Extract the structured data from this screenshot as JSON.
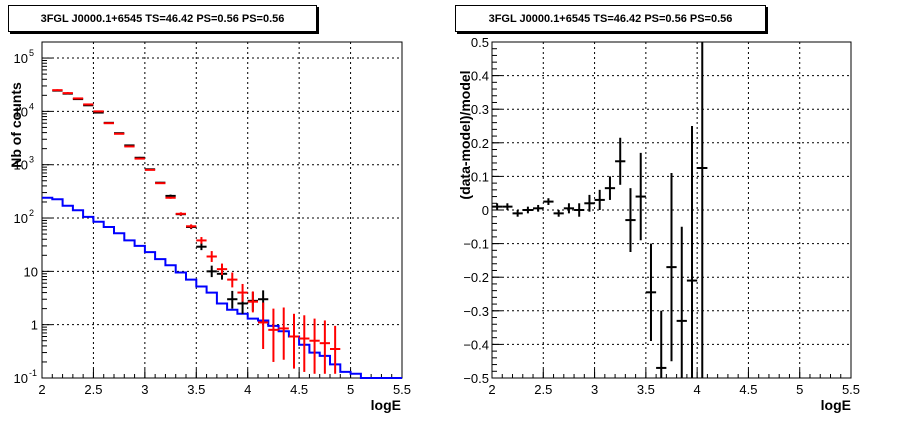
{
  "chart_data": [
    {
      "type": "line",
      "title": "3FGL J0000.1+6545 TS=46.42 PS=0.56 PS=0.56",
      "xlabel": "logE",
      "ylabel": "Nb of counts",
      "xlim": [
        2,
        5.5
      ],
      "ylim": [
        0.1,
        200000
      ],
      "yscale": "log",
      "grid": true,
      "x_ticks": [
        "2",
        "2.5",
        "3",
        "3.5",
        "4",
        "4.5",
        "5",
        "5.5"
      ],
      "y_ticks": [
        "10^-1",
        "1",
        "10",
        "10^2",
        "10^3",
        "10^4",
        "10^5"
      ],
      "bin_edges": [
        2.0,
        2.1,
        2.2,
        2.3,
        2.4,
        2.5,
        2.6,
        2.7,
        2.8,
        2.9,
        3.0,
        3.1,
        3.2,
        3.3,
        3.4,
        3.5,
        3.6,
        3.7,
        3.8,
        3.9,
        4.0,
        4.1,
        4.2,
        4.3,
        4.4,
        4.5,
        4.6,
        4.7,
        4.8,
        4.9,
        5.0,
        5.1,
        5.2,
        5.3,
        5.4,
        5.5
      ],
      "series": [
        {
          "color": "#0000ff",
          "style": "step",
          "values": [
            240,
            225,
            170,
            140,
            105,
            85,
            68,
            52,
            38,
            30,
            23,
            17,
            13,
            9.5,
            7,
            5.2,
            4,
            2.5,
            1.9,
            1.6,
            1.3,
            1.2,
            0.95,
            0.75,
            0.6,
            0.42,
            0.3,
            0.26,
            0.18,
            0.13,
            0.12,
            0.1,
            0.1,
            0.1,
            0.1
          ]
        },
        {
          "color": "#ff0000",
          "style": "errorbar",
          "points": [
            {
              "x": 2.15,
              "y": 25000,
              "lo": 24000,
              "hi": 26000
            },
            {
              "x": 2.25,
              "y": 22000,
              "lo": 21000,
              "hi": 23000
            },
            {
              "x": 2.35,
              "y": 17500,
              "lo": 17000,
              "hi": 18000
            },
            {
              "x": 2.45,
              "y": 13500,
              "lo": 13000,
              "hi": 14000
            },
            {
              "x": 2.55,
              "y": 10000,
              "lo": 9700,
              "hi": 10300
            },
            {
              "x": 2.65,
              "y": 6000,
              "lo": 5800,
              "hi": 6200
            },
            {
              "x": 2.75,
              "y": 3800,
              "lo": 3700,
              "hi": 3900
            },
            {
              "x": 2.85,
              "y": 2200,
              "lo": 2150,
              "hi": 2250
            },
            {
              "x": 2.95,
              "y": 1300,
              "lo": 1260,
              "hi": 1340
            },
            {
              "x": 3.05,
              "y": 800,
              "lo": 780,
              "hi": 820
            },
            {
              "x": 3.15,
              "y": 450,
              "lo": 435,
              "hi": 465
            },
            {
              "x": 3.25,
              "y": 240,
              "lo": 230,
              "hi": 250
            },
            {
              "x": 3.35,
              "y": 120,
              "lo": 112,
              "hi": 128
            },
            {
              "x": 3.45,
              "y": 70,
              "lo": 64,
              "hi": 76
            },
            {
              "x": 3.55,
              "y": 38,
              "lo": 33,
              "hi": 44
            },
            {
              "x": 3.65,
              "y": 19,
              "lo": 15,
              "hi": 24
            },
            {
              "x": 3.75,
              "y": 11,
              "lo": 8.5,
              "hi": 14
            },
            {
              "x": 3.85,
              "y": 7,
              "lo": 5,
              "hi": 9.5
            },
            {
              "x": 3.95,
              "y": 4,
              "lo": 2.7,
              "hi": 5.8
            },
            {
              "x": 4.05,
              "y": 2.7,
              "lo": 1.7,
              "hi": 4.2
            },
            {
              "x": 4.15,
              "y": 1.1,
              "lo": 0.35,
              "hi": 2.6
            },
            {
              "x": 4.25,
              "y": 0.8,
              "lo": 0.2,
              "hi": 2.0
            },
            {
              "x": 4.35,
              "y": 0.85,
              "lo": 0.22,
              "hi": 2.1
            },
            {
              "x": 4.45,
              "y": 0.6,
              "lo": 0.15,
              "hi": 1.6
            },
            {
              "x": 4.55,
              "y": 0.55,
              "lo": 0.13,
              "hi": 1.5
            },
            {
              "x": 4.65,
              "y": 0.5,
              "lo": 0.12,
              "hi": 1.3
            },
            {
              "x": 4.75,
              "y": 0.45,
              "lo": 0.12,
              "hi": 1.2
            },
            {
              "x": 4.85,
              "y": 0.35,
              "lo": 0.12,
              "hi": 0.95
            }
          ]
        },
        {
          "color": "#000000",
          "style": "errorbar",
          "points": [
            {
              "x": 2.15,
              "y": 24500,
              "lo": 24000,
              "hi": 25000
            },
            {
              "x": 2.25,
              "y": 21500,
              "lo": 21000,
              "hi": 22000
            },
            {
              "x": 2.35,
              "y": 17000,
              "lo": 16500,
              "hi": 17500
            },
            {
              "x": 2.45,
              "y": 13000,
              "lo": 12600,
              "hi": 13400
            },
            {
              "x": 2.55,
              "y": 9500,
              "lo": 9200,
              "hi": 9800
            },
            {
              "x": 2.65,
              "y": 6100,
              "lo": 5900,
              "hi": 6300
            },
            {
              "x": 2.75,
              "y": 3900,
              "lo": 3800,
              "hi": 4000
            },
            {
              "x": 2.85,
              "y": 2300,
              "lo": 2250,
              "hi": 2350
            },
            {
              "x": 2.95,
              "y": 1350,
              "lo": 1300,
              "hi": 1400
            },
            {
              "x": 3.05,
              "y": 820,
              "lo": 795,
              "hi": 845
            },
            {
              "x": 3.15,
              "y": 460,
              "lo": 445,
              "hi": 475
            },
            {
              "x": 3.25,
              "y": 260,
              "lo": 245,
              "hi": 275
            },
            {
              "x": 3.35,
              "y": 118,
              "lo": 110,
              "hi": 126
            },
            {
              "x": 3.45,
              "y": 68,
              "lo": 62,
              "hi": 74
            },
            {
              "x": 3.55,
              "y": 29,
              "lo": 25,
              "hi": 34
            },
            {
              "x": 3.65,
              "y": 10,
              "lo": 7.8,
              "hi": 12.8
            },
            {
              "x": 3.75,
              "y": 9,
              "lo": 7,
              "hi": 11.5
            },
            {
              "x": 3.85,
              "y": 3,
              "lo": 2,
              "hi": 4.3
            },
            {
              "x": 3.95,
              "y": 2.5,
              "lo": 1.6,
              "hi": 3.6
            },
            {
              "x": 4.05,
              "y": 2.8,
              "lo": 1.8,
              "hi": 4.1
            },
            {
              "x": 4.15,
              "y": 3,
              "lo": 1.9,
              "hi": 4.4
            }
          ]
        }
      ]
    },
    {
      "type": "scatter",
      "title": "3FGL J0000.1+6545 TS=46.42 PS=0.56 PS=0.56",
      "xlabel": "logE",
      "ylabel": "(data-model)/model",
      "xlim": [
        2,
        5.5
      ],
      "ylim": [
        -0.5,
        0.5
      ],
      "grid": true,
      "x_ticks": [
        "2",
        "2.5",
        "3",
        "3.5",
        "4",
        "4.5",
        "5",
        "5.5"
      ],
      "y_ticks": [
        "−0.5",
        "−0.4",
        "−0.3",
        "−0.2",
        "−0.1",
        "0",
        "0.1",
        "0.2",
        "0.3",
        "0.4",
        "0.5"
      ],
      "series": [
        {
          "color": "#000000",
          "style": "errorbar",
          "points": [
            {
              "x": 2.05,
              "y": 0.01,
              "lo": 0.0,
              "hi": 0.02
            },
            {
              "x": 2.15,
              "y": 0.01,
              "lo": 0.0,
              "hi": 0.02
            },
            {
              "x": 2.25,
              "y": -0.01,
              "lo": -0.02,
              "hi": 0.0
            },
            {
              "x": 2.35,
              "y": 0.0,
              "lo": -0.01,
              "hi": 0.01
            },
            {
              "x": 2.45,
              "y": 0.005,
              "lo": -0.005,
              "hi": 0.015
            },
            {
              "x": 2.55,
              "y": 0.025,
              "lo": 0.015,
              "hi": 0.035
            },
            {
              "x": 2.65,
              "y": -0.01,
              "lo": -0.02,
              "hi": 0.0
            },
            {
              "x": 2.75,
              "y": 0.005,
              "lo": -0.01,
              "hi": 0.02
            },
            {
              "x": 2.85,
              "y": 0.0,
              "lo": -0.02,
              "hi": 0.02
            },
            {
              "x": 2.95,
              "y": 0.02,
              "lo": -0.005,
              "hi": 0.045
            },
            {
              "x": 3.05,
              "y": 0.03,
              "lo": 0.0,
              "hi": 0.06
            },
            {
              "x": 3.15,
              "y": 0.065,
              "lo": 0.03,
              "hi": 0.1
            },
            {
              "x": 3.25,
              "y": 0.145,
              "lo": 0.075,
              "hi": 0.215
            },
            {
              "x": 3.35,
              "y": -0.03,
              "lo": -0.125,
              "hi": 0.065
            },
            {
              "x": 3.45,
              "y": 0.04,
              "lo": -0.09,
              "hi": 0.17
            },
            {
              "x": 3.55,
              "y": -0.245,
              "lo": -0.39,
              "hi": -0.1
            },
            {
              "x": 3.65,
              "y": -0.47,
              "lo": -0.5,
              "hi": -0.3
            },
            {
              "x": 3.75,
              "y": -0.17,
              "lo": -0.45,
              "hi": 0.11
            },
            {
              "x": 3.85,
              "y": -0.33,
              "lo": -0.5,
              "hi": -0.05
            },
            {
              "x": 3.95,
              "y": -0.21,
              "lo": -0.5,
              "hi": 0.25
            },
            {
              "x": 4.05,
              "y": 0.125,
              "lo": -0.5,
              "hi": 0.5
            }
          ]
        }
      ]
    }
  ]
}
